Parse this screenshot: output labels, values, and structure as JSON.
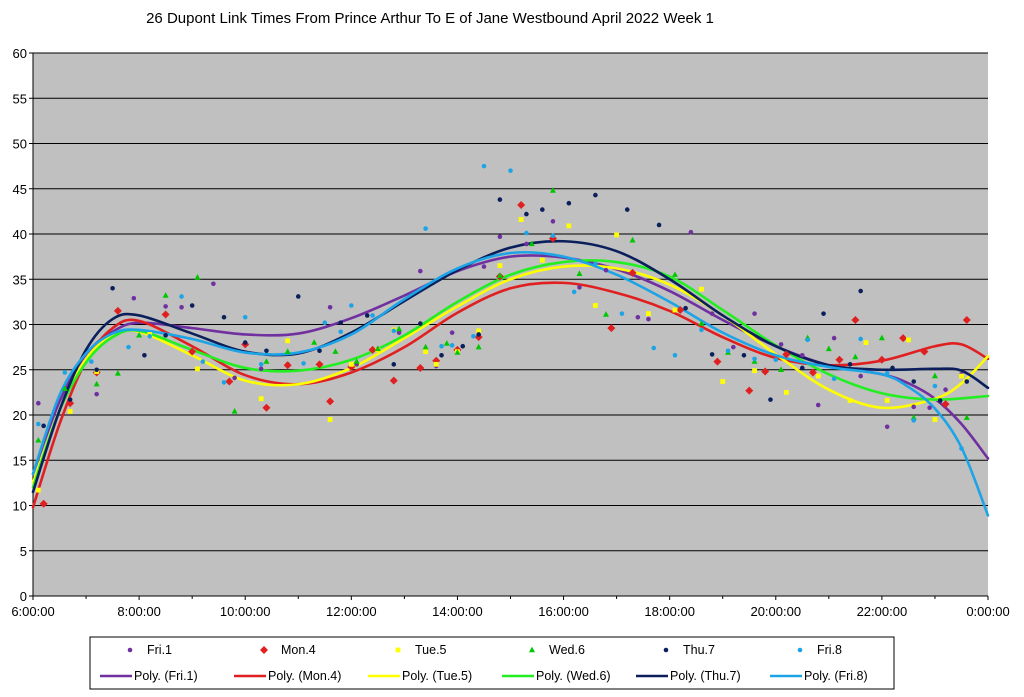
{
  "chart_data": {
    "type": "scatter",
    "title": "26 Dupont Link Times From Prince Arthur To E of Jane Westbound April 2022  Week 1",
    "xlabel": "",
    "ylabel": "",
    "ylim": [
      0,
      60
    ],
    "xlim": [
      "6:00:00",
      "0:00:00"
    ],
    "y_ticks": [
      "0",
      "5",
      "10",
      "15",
      "20",
      "25",
      "30",
      "35",
      "40",
      "45",
      "50",
      "55",
      "60"
    ],
    "x_ticks": [
      "6:00:00",
      "8:00:00",
      "10:00:00",
      "12:00:00",
      "14:00:00",
      "16:00:00",
      "18:00:00",
      "20:00:00",
      "22:00:00",
      "0:00:00"
    ],
    "grid": "horizontal",
    "plot_background": "#c0c0c0",
    "legend_position": "bottom",
    "series": [
      {
        "name": "Fri.1",
        "marker": "circle",
        "color": "#7030a0",
        "x": [
          6.1,
          7.2,
          7.9,
          8.5,
          8.8,
          9.4,
          9.8,
          10.3,
          10.8,
          11.6,
          12.1,
          12.5,
          12.9,
          13.3,
          13.6,
          13.9,
          14.5,
          14.8,
          15.3,
          15.8,
          16.3,
          16.8,
          17.4,
          17.6,
          18.4,
          18.8,
          19.2,
          19.6,
          20.1,
          20.5,
          20.8,
          21.1,
          21.6,
          22.1,
          22.6,
          22.9,
          23.2,
          23.5
        ],
        "y": [
          21.3,
          22.3,
          32.9,
          32.0,
          31.9,
          34.5,
          24.1,
          25.1,
          25.6,
          31.9,
          25.6,
          27.3,
          29.1,
          35.9,
          25.4,
          29.1,
          36.4,
          39.7,
          38.9,
          41.4,
          34.1,
          36.0,
          30.8,
          30.6,
          40.2,
          31.2,
          27.5,
          31.2,
          27.8,
          26.6,
          21.1,
          28.5,
          24.3,
          18.7,
          20.9,
          20.8,
          22.8,
          24.5
        ]
      },
      {
        "name": "Mon.4",
        "marker": "diamond",
        "color": "#e02020",
        "x": [
          6.2,
          6.7,
          7.2,
          7.6,
          8.5,
          9.0,
          9.7,
          10.0,
          10.4,
          10.8,
          11.4,
          11.6,
          12.0,
          12.4,
          12.8,
          13.3,
          13.6,
          14.0,
          14.4,
          14.8,
          15.2,
          15.8,
          16.9,
          17.3,
          18.2,
          18.9,
          19.5,
          19.8,
          20.2,
          20.7,
          21.2,
          21.5,
          22.0,
          22.4,
          22.8,
          23.2,
          23.6
        ],
        "y": [
          10.2,
          21.3,
          24.7,
          31.5,
          31.1,
          27.0,
          23.7,
          27.8,
          20.8,
          25.5,
          25.6,
          21.5,
          25.3,
          27.2,
          23.8,
          25.2,
          26.0,
          27.2,
          28.6,
          35.3,
          43.2,
          39.5,
          29.6,
          35.7,
          31.6,
          25.9,
          22.7,
          24.8,
          26.7,
          24.7,
          26.1,
          30.5,
          26.1,
          28.5,
          27.0,
          21.2,
          30.5
        ]
      },
      {
        "name": "Tue.5",
        "marker": "square",
        "color": "#ffff00",
        "x": [
          6.1,
          6.7,
          7.2,
          8.2,
          9.1,
          10.3,
          10.8,
          11.6,
          12.0,
          12.5,
          12.8,
          13.4,
          13.6,
          14.0,
          14.4,
          14.8,
          15.2,
          15.6,
          16.1,
          16.6,
          17.0,
          17.6,
          18.1,
          18.6,
          19.0,
          19.6,
          20.2,
          20.8,
          21.4,
          21.7,
          22.1,
          22.5,
          23.0,
          23.5
        ],
        "y": [
          11.7,
          20.4,
          24.8,
          28.9,
          25.1,
          21.8,
          28.2,
          19.5,
          25.6,
          27.2,
          29.4,
          27.0,
          25.6,
          27.0,
          29.3,
          36.5,
          41.6,
          37.1,
          40.9,
          32.1,
          39.9,
          31.2,
          31.6,
          33.9,
          23.7,
          24.9,
          22.5,
          24.3,
          21.6,
          28.0,
          21.6,
          28.3,
          19.5,
          24.3
        ]
      },
      {
        "name": "Wed.6",
        "marker": "triangle",
        "color": "#00c800",
        "x": [
          6.1,
          6.6,
          7.2,
          7.6,
          8.0,
          8.5,
          9.1,
          9.8,
          10.4,
          10.8,
          11.3,
          11.7,
          12.1,
          12.5,
          12.9,
          13.4,
          13.8,
          14.0,
          14.4,
          14.8,
          15.4,
          15.8,
          16.3,
          16.8,
          17.3,
          18.1,
          18.6,
          19.1,
          19.6,
          20.1,
          20.6,
          21.0,
          21.5,
          22.0,
          22.6,
          23.0,
          23.6
        ],
        "y": [
          17.2,
          22.9,
          23.4,
          24.6,
          28.8,
          33.2,
          35.2,
          20.4,
          25.9,
          27.0,
          28.0,
          27.0,
          25.9,
          27.3,
          29.5,
          27.5,
          27.9,
          26.9,
          27.5,
          35.4,
          38.9,
          44.8,
          35.6,
          31.1,
          39.3,
          35.5,
          30.1,
          26.9,
          25.9,
          25.0,
          28.5,
          27.3,
          26.4,
          28.5,
          19.7,
          24.3,
          19.7
        ]
      },
      {
        "name": "Thu.7",
        "marker": "circle",
        "color": "#0a1f5c",
        "x": [
          6.2,
          6.7,
          7.2,
          7.5,
          8.1,
          8.5,
          9.0,
          9.6,
          10.0,
          10.4,
          11.0,
          11.4,
          11.8,
          12.3,
          12.8,
          13.3,
          13.7,
          14.1,
          14.4,
          14.8,
          15.3,
          15.6,
          16.1,
          16.6,
          17.2,
          17.8,
          18.3,
          18.8,
          19.4,
          19.9,
          20.5,
          20.9,
          21.4,
          21.6,
          22.2,
          22.6,
          23.1,
          23.6
        ],
        "y": [
          18.8,
          21.7,
          25.0,
          34.0,
          26.6,
          28.8,
          32.1,
          30.8,
          28.0,
          27.1,
          33.1,
          27.1,
          30.2,
          31.0,
          25.6,
          30.1,
          26.6,
          27.6,
          28.9,
          43.8,
          42.2,
          42.7,
          43.4,
          44.3,
          42.7,
          41.0,
          31.8,
          26.7,
          26.6,
          21.7,
          25.2,
          31.2,
          25.6,
          33.7,
          25.2,
          23.7,
          21.6,
          23.7
        ]
      },
      {
        "name": "Fri.8",
        "marker": "circle",
        "color": "#1ca4e6",
        "x": [
          6.1,
          6.6,
          7.1,
          7.8,
          8.2,
          8.8,
          9.2,
          9.6,
          10.0,
          10.3,
          11.1,
          11.5,
          11.8,
          12.0,
          12.4,
          12.8,
          13.4,
          13.7,
          13.9,
          14.3,
          14.5,
          15.0,
          15.3,
          15.8,
          16.2,
          16.6,
          17.1,
          17.7,
          18.1,
          18.6,
          19.1,
          19.6,
          20.0,
          20.6,
          21.1,
          21.6,
          22.1,
          22.6,
          23.0,
          23.5
        ],
        "y": [
          19.0,
          24.7,
          25.9,
          27.5,
          28.7,
          33.1,
          25.9,
          23.6,
          30.8,
          25.6,
          25.7,
          30.2,
          29.2,
          32.1,
          31.0,
          29.3,
          40.6,
          27.6,
          27.7,
          28.7,
          47.5,
          47.0,
          40.1,
          39.8,
          33.6,
          36.7,
          31.2,
          27.4,
          26.6,
          29.4,
          27.1,
          26.2,
          26.1,
          28.3,
          24.0,
          28.4,
          24.6,
          19.4,
          23.2,
          16.3
        ]
      }
    ],
    "trendlines": [
      {
        "name": "Poly. (Fri.1)",
        "color": "#7030a0",
        "x": [
          6.0,
          6.5,
          7.0,
          7.5,
          8.0,
          9.0,
          10.0,
          11.0,
          12.0,
          13.0,
          14.0,
          15.0,
          16.0,
          17.0,
          18.0,
          19.0,
          20.0,
          21.0,
          22.0,
          22.5,
          23.0,
          23.5,
          24.0
        ],
        "y": [
          13.5,
          21.5,
          26.7,
          29.2,
          30.2,
          29.6,
          28.9,
          29.0,
          30.7,
          33.2,
          35.9,
          37.5,
          37.4,
          36.1,
          33.7,
          30.5,
          27.6,
          25.5,
          24.5,
          23.5,
          21.8,
          19.0,
          15.2
        ]
      },
      {
        "name": "Poly. (Mon.4)",
        "color": "#e02020",
        "x": [
          6.0,
          6.5,
          7.0,
          7.5,
          8.0,
          9.0,
          10.0,
          11.0,
          12.0,
          13.0,
          14.0,
          15.0,
          16.0,
          17.0,
          18.0,
          19.0,
          20.0,
          21.0,
          22.0,
          23.0,
          23.5,
          24.0
        ],
        "y": [
          9.8,
          19.0,
          26.0,
          29.6,
          30.4,
          27.6,
          24.4,
          23.4,
          24.7,
          27.5,
          31.3,
          34.0,
          34.6,
          33.5,
          31.5,
          28.6,
          26.3,
          25.5,
          26.0,
          27.6,
          27.8,
          26.2
        ]
      },
      {
        "name": "Poly. (Tue.5)",
        "color": "#ffff00",
        "x": [
          6.0,
          6.5,
          7.0,
          7.5,
          8.0,
          9.0,
          10.0,
          11.0,
          12.0,
          13.0,
          14.0,
          15.0,
          16.0,
          17.0,
          18.0,
          19.0,
          20.0,
          21.0,
          22.0,
          23.0,
          23.5,
          24.0
        ],
        "y": [
          12.5,
          20.5,
          26.2,
          28.8,
          29.2,
          26.6,
          23.8,
          23.4,
          25.2,
          28.5,
          32.0,
          35.0,
          36.4,
          36.2,
          34.4,
          31.0,
          26.7,
          22.8,
          20.8,
          21.8,
          23.5,
          26.5
        ]
      },
      {
        "name": "Poly. (Wed.6)",
        "color": "#22ee22",
        "x": [
          6.0,
          6.5,
          7.0,
          7.5,
          8.0,
          9.0,
          10.0,
          11.0,
          12.0,
          13.0,
          14.0,
          15.0,
          16.0,
          17.0,
          18.0,
          19.0,
          20.0,
          21.0,
          22.0,
          23.0,
          24.0
        ],
        "y": [
          12.0,
          20.5,
          25.8,
          28.6,
          29.3,
          27.2,
          25.2,
          24.9,
          26.1,
          28.8,
          32.5,
          35.5,
          36.9,
          36.9,
          35.3,
          31.6,
          27.7,
          24.5,
          22.4,
          21.7,
          22.1
        ]
      },
      {
        "name": "Poly. (Thu.7)",
        "color": "#0a1f5c",
        "x": [
          6.0,
          6.5,
          7.0,
          7.5,
          8.0,
          9.0,
          10.0,
          11.0,
          12.0,
          13.0,
          14.0,
          15.0,
          16.0,
          17.0,
          18.0,
          19.0,
          20.0,
          21.0,
          22.0,
          23.0,
          23.5,
          24.0
        ],
        "y": [
          11.5,
          20.5,
          27.2,
          30.6,
          31.0,
          29.0,
          27.0,
          26.8,
          29.1,
          32.6,
          36.0,
          38.5,
          39.2,
          38.1,
          35.0,
          31.0,
          27.6,
          25.5,
          25.0,
          25.1,
          24.9,
          23.0
        ]
      },
      {
        "name": "Poly. (Fri.8)",
        "color": "#1ca4e6",
        "x": [
          6.0,
          6.5,
          7.0,
          7.5,
          8.0,
          9.0,
          10.0,
          11.0,
          12.0,
          13.0,
          14.0,
          15.0,
          16.0,
          17.0,
          18.0,
          19.0,
          20.0,
          21.0,
          22.0,
          22.5,
          23.0,
          23.5,
          24.0
        ],
        "y": [
          13.5,
          22.2,
          26.8,
          29.0,
          29.4,
          28.4,
          26.9,
          26.9,
          28.9,
          32.8,
          36.2,
          37.9,
          37.5,
          35.5,
          32.5,
          29.1,
          26.6,
          25.3,
          24.5,
          23.1,
          20.7,
          16.4,
          8.9
        ]
      }
    ]
  }
}
